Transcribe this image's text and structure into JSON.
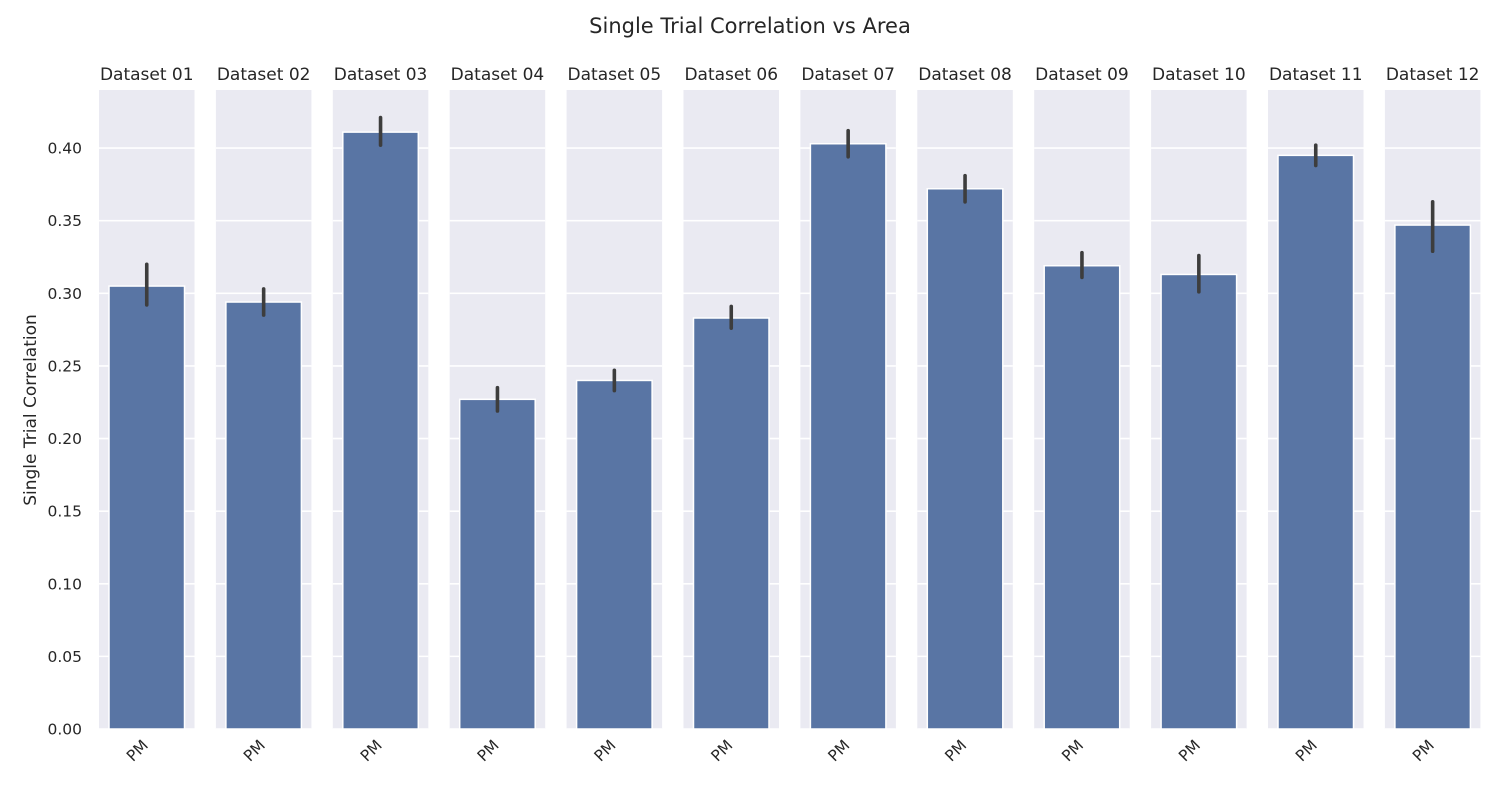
{
  "chart_data": {
    "type": "bar",
    "title": "Single Trial Correlation vs Area",
    "ylabel": "Single Trial Correlation",
    "xlabel": "",
    "ylim": [
      0,
      0.44
    ],
    "yticks": [
      0.0,
      0.05,
      0.1,
      0.15,
      0.2,
      0.25,
      0.3,
      0.35,
      0.4
    ],
    "ytick_labels": [
      "0.00",
      "0.05",
      "0.10",
      "0.15",
      "0.20",
      "0.25",
      "0.30",
      "0.35",
      "0.40"
    ],
    "grid": true,
    "bar_color": "#5975a4",
    "background_color": "#eaeaf2",
    "panels": [
      {
        "title": "Dataset 01",
        "category": "PM",
        "value": 0.305,
        "err_low": 0.292,
        "err_high": 0.32
      },
      {
        "title": "Dataset 02",
        "category": "PM",
        "value": 0.294,
        "err_low": 0.285,
        "err_high": 0.303
      },
      {
        "title": "Dataset 03",
        "category": "PM",
        "value": 0.411,
        "err_low": 0.402,
        "err_high": 0.421
      },
      {
        "title": "Dataset 04",
        "category": "PM",
        "value": 0.227,
        "err_low": 0.219,
        "err_high": 0.235
      },
      {
        "title": "Dataset 05",
        "category": "PM",
        "value": 0.24,
        "err_low": 0.233,
        "err_high": 0.247
      },
      {
        "title": "Dataset 06",
        "category": "PM",
        "value": 0.283,
        "err_low": 0.276,
        "err_high": 0.291
      },
      {
        "title": "Dataset 07",
        "category": "PM",
        "value": 0.403,
        "err_low": 0.394,
        "err_high": 0.412
      },
      {
        "title": "Dataset 08",
        "category": "PM",
        "value": 0.372,
        "err_low": 0.363,
        "err_high": 0.381
      },
      {
        "title": "Dataset 09",
        "category": "PM",
        "value": 0.319,
        "err_low": 0.311,
        "err_high": 0.328
      },
      {
        "title": "Dataset 10",
        "category": "PM",
        "value": 0.313,
        "err_low": 0.301,
        "err_high": 0.326
      },
      {
        "title": "Dataset 11",
        "category": "PM",
        "value": 0.395,
        "err_low": 0.388,
        "err_high": 0.402
      },
      {
        "title": "Dataset 12",
        "category": "PM",
        "value": 0.347,
        "err_low": 0.329,
        "err_high": 0.363
      }
    ]
  }
}
